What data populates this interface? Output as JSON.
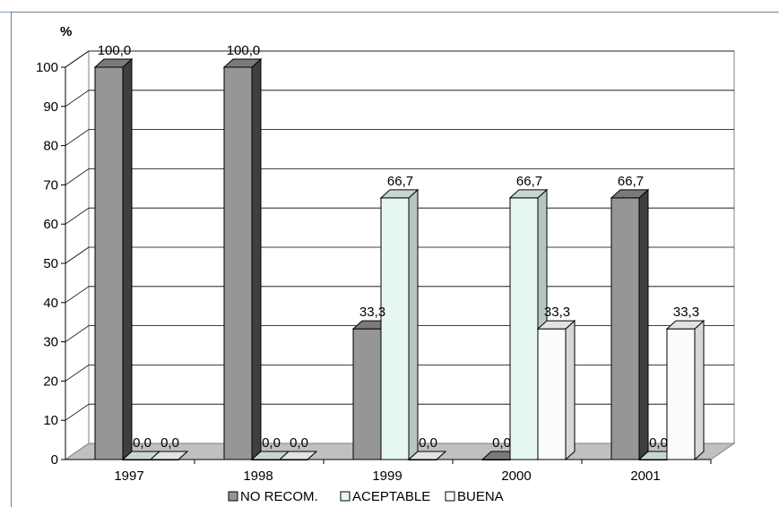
{
  "chart_data": {
    "type": "bar",
    "ylabel": "%",
    "categories": [
      "1997",
      "1998",
      "1999",
      "2000",
      "2001"
    ],
    "series": [
      {
        "name": "NO RECOM.",
        "values": [
          100.0,
          100.0,
          33.3,
          0.0,
          66.7
        ],
        "labels": [
          "100,0",
          "100,0",
          "33,3",
          "0,0",
          "66,7"
        ]
      },
      {
        "name": "ACEPTABLE",
        "values": [
          0.0,
          0.0,
          66.7,
          66.7,
          0.0
        ],
        "labels": [
          "0,0",
          "0,0",
          "66,7",
          "66,7",
          "0,0"
        ]
      },
      {
        "name": "BUENA",
        "values": [
          0.0,
          0.0,
          0.0,
          33.3,
          33.3
        ],
        "labels": [
          "0,0",
          "0,0",
          "0,0",
          "33,3",
          "33,3"
        ]
      }
    ],
    "ylim": [
      0,
      100
    ],
    "yticks": [
      "0",
      "10",
      "20",
      "30",
      "40",
      "50",
      "60",
      "70",
      "80",
      "90",
      "100"
    ],
    "grid": true,
    "legend_position": "bottom",
    "colors": {
      "NO RECOM.": "#969696",
      "ACEPTABLE": "#e6f7f3",
      "BUENA": "#fbfbfb"
    }
  }
}
